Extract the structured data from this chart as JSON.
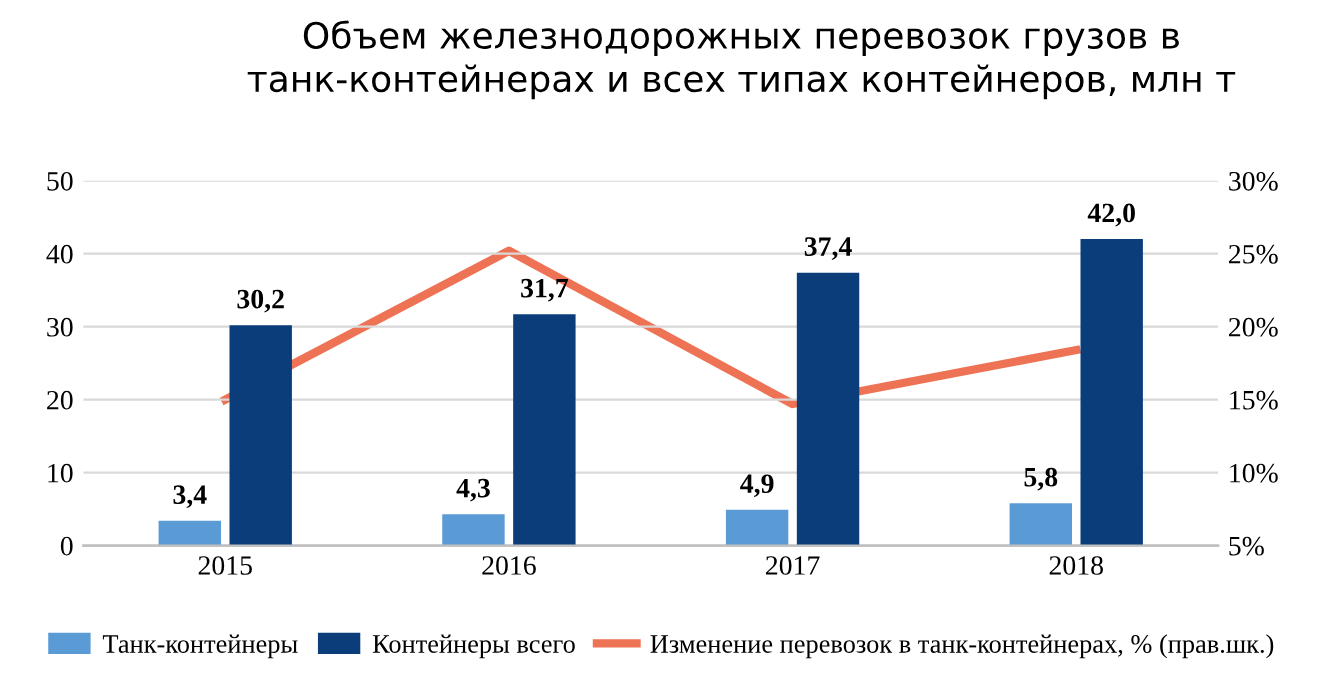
{
  "chart_data": {
    "type": "bar",
    "title": "Объем железнодорожных перевозок грузов в\nтанк-контейнерах и всех типах контейнеров, млн т",
    "categories": [
      "2015",
      "2016",
      "2017",
      "2018"
    ],
    "series": [
      {
        "name": "Танк-контейнеры",
        "color": "#5b9bd5",
        "values": [
          3.4,
          4.3,
          4.9,
          5.8
        ],
        "value_labels": [
          "3,4",
          "4,3",
          "4,9",
          "5,8"
        ]
      },
      {
        "name": "Контейнеры всего",
        "color": "#0b3d7a",
        "values": [
          30.2,
          31.7,
          37.4,
          42.0
        ],
        "value_labels": [
          "30,2",
          "31,7",
          "37,4",
          "42,0"
        ]
      },
      {
        "name": "Изменение перевозок в танк-контейнерах, % (прав.шк.)",
        "type": "line",
        "axis": "y2",
        "color": "#ee7254",
        "values": [
          15.0,
          25.2,
          14.7,
          18.4
        ]
      }
    ],
    "ylim": [
      0,
      50
    ],
    "yticks": [
      0,
      10,
      20,
      30,
      40,
      50
    ],
    "y2lim": [
      5,
      30
    ],
    "y2ticks": [
      {
        "value": 5,
        "label": "5%"
      },
      {
        "value": 10,
        "label": "10%"
      },
      {
        "value": 15,
        "label": "15%"
      },
      {
        "value": 20,
        "label": "20%"
      },
      {
        "value": 25,
        "label": "25%"
      },
      {
        "value": 30,
        "label": "30%"
      }
    ],
    "grid": "y",
    "legend": "bottom"
  }
}
